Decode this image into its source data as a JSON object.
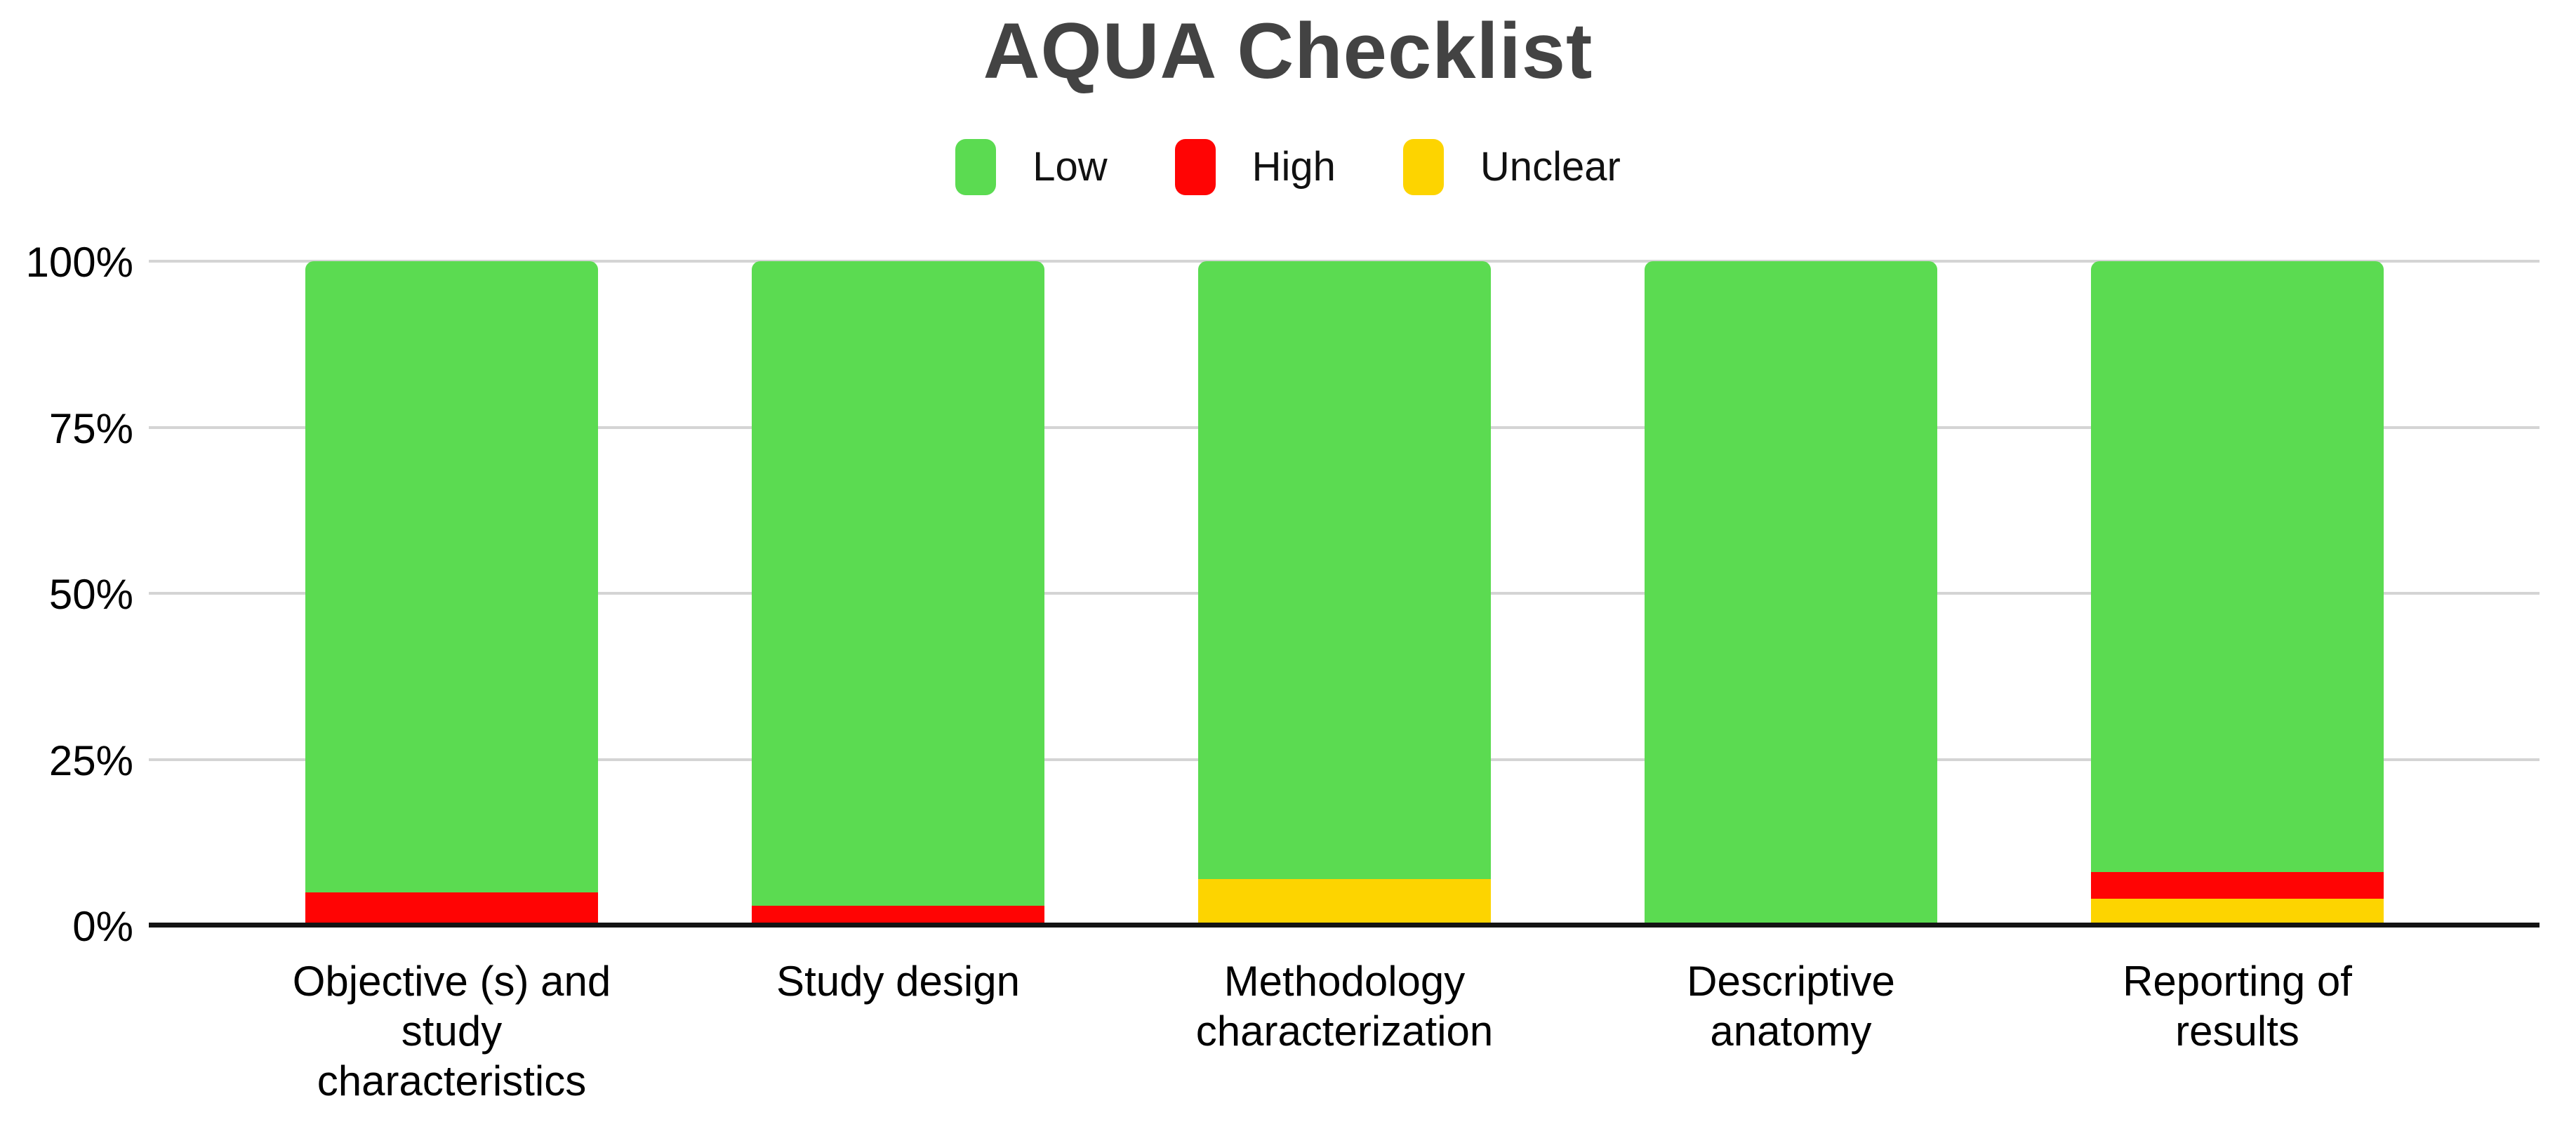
{
  "title": "AQUA Checklist",
  "title_color": "#434343",
  "legend": {
    "items": [
      {
        "label": "Low",
        "color": "#5bdb51"
      },
      {
        "label": "High",
        "color": "#ff0404"
      },
      {
        "label": "Unclear",
        "color": "#fdd400"
      }
    ]
  },
  "yaxis": {
    "ticks": [
      "100%",
      "75%",
      "50%",
      "25%",
      "0%"
    ]
  },
  "xaxis": {
    "display_labels": [
      "Objective (s) and\nstudy\ncharacteristics",
      "Study design",
      "Methodology\ncharacterization",
      "Descriptive\nanatomy",
      "Reporting of\nresults"
    ]
  },
  "chart_data": {
    "type": "bar",
    "stacked": true,
    "title": "AQUA Checklist",
    "categories": [
      "Objective (s) and study characteristics",
      "Study design",
      "Methodology characterization",
      "Descriptive anatomy",
      "Reporting of results"
    ],
    "series": [
      {
        "name": "Low",
        "color": "#5bdb51",
        "values": [
          95,
          97,
          93,
          100,
          92
        ]
      },
      {
        "name": "High",
        "color": "#ff0404",
        "values": [
          5,
          3,
          0,
          0,
          4
        ]
      },
      {
        "name": "Unclear",
        "color": "#fdd400",
        "values": [
          0,
          0,
          7,
          0,
          4
        ]
      }
    ],
    "stack_order_bottom_to_top": [
      "Unclear",
      "High",
      "Low"
    ],
    "units": "percent",
    "ylim": [
      0,
      100
    ],
    "ytick_interval": 25,
    "legend_position": "top",
    "grid": true,
    "gridline_color": "#d4d4d4",
    "axis_line_color": "#141414"
  }
}
